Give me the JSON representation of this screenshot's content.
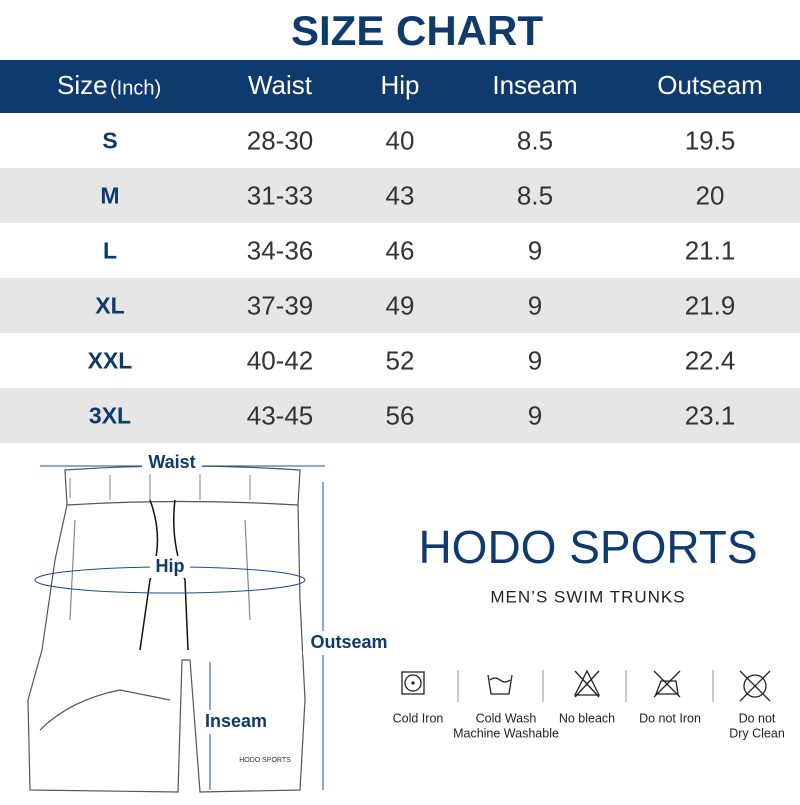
{
  "title": "SIZE CHART",
  "table": {
    "header": [
      "Size",
      "Waist",
      "Hip",
      "Inseam",
      "Outseam"
    ],
    "header_unit": "(Inch)",
    "rows": [
      [
        "S",
        "28-30",
        "40",
        "8.5",
        "19.5"
      ],
      [
        "M",
        "31-33",
        "43",
        "8.5",
        "20"
      ],
      [
        "L",
        "34-36",
        "46",
        "9",
        "21.1"
      ],
      [
        "XL",
        "37-39",
        "49",
        "9",
        "21.9"
      ],
      [
        "XXL",
        "40-42",
        "52",
        "9",
        "22.4"
      ],
      [
        "3XL",
        "43-45",
        "56",
        "9",
        "23.1"
      ]
    ]
  },
  "diagram": {
    "waist": "Waist",
    "hip": "Hip",
    "outseam": "Outseam",
    "inseam": "Inseam",
    "logo": "HODO SPORTS"
  },
  "brand": {
    "name": "HODO SPORTS",
    "subtitle": "MEN’S SWIM TRUNKS"
  },
  "care": [
    [
      "Cold Iron"
    ],
    [
      "Cold Wash",
      "Machine Washable"
    ],
    [
      "No bleach"
    ],
    [
      "Do not Iron"
    ],
    [
      "Do not",
      "Dry Clean"
    ]
  ]
}
